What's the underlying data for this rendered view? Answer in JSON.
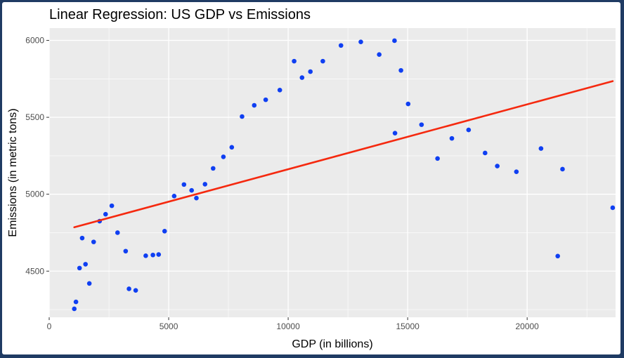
{
  "chart_data": {
    "type": "scatter",
    "title": "Linear Regression: US GDP vs Emissions",
    "xlabel": "GDP (in billions)",
    "ylabel": "Emissions (in metric tons)",
    "xlim": [
      0,
      23700
    ],
    "ylim": [
      4200,
      6080
    ],
    "xticks": [
      0,
      5000,
      10000,
      15000,
      20000
    ],
    "yticks": [
      4500,
      5000,
      5500,
      6000
    ],
    "grid": true,
    "legend": "none",
    "colors": {
      "panel": "#ebebeb",
      "grid": "#ffffff",
      "points": "#0f3ff2",
      "fit_line": "#f5290f",
      "text": "#000000",
      "tick_text": "#4d4d4d"
    },
    "points": [
      [
        1050,
        4255
      ],
      [
        1120,
        4300
      ],
      [
        1270,
        4520
      ],
      [
        1380,
        4715
      ],
      [
        1520,
        4545
      ],
      [
        1680,
        4420
      ],
      [
        1860,
        4690
      ],
      [
        2110,
        4825
      ],
      [
        2360,
        4870
      ],
      [
        2620,
        4925
      ],
      [
        2860,
        4750
      ],
      [
        3200,
        4630
      ],
      [
        3340,
        4385
      ],
      [
        3620,
        4375
      ],
      [
        4040,
        4600
      ],
      [
        4340,
        4605
      ],
      [
        4580,
        4608
      ],
      [
        4830,
        4760
      ],
      [
        5230,
        4988
      ],
      [
        5640,
        5063
      ],
      [
        5960,
        5025
      ],
      [
        6160,
        4975
      ],
      [
        6520,
        5065
      ],
      [
        6860,
        5168
      ],
      [
        7290,
        5243
      ],
      [
        7640,
        5305
      ],
      [
        8070,
        5505
      ],
      [
        8580,
        5578
      ],
      [
        9060,
        5614
      ],
      [
        9650,
        5677
      ],
      [
        10250,
        5865
      ],
      [
        10580,
        5758
      ],
      [
        10930,
        5797
      ],
      [
        11450,
        5865
      ],
      [
        12210,
        5967
      ],
      [
        13040,
        5990
      ],
      [
        13810,
        5908
      ],
      [
        14450,
        5998
      ],
      [
        14470,
        5397
      ],
      [
        14720,
        5805
      ],
      [
        15020,
        5587
      ],
      [
        15580,
        5452
      ],
      [
        16250,
        5232
      ],
      [
        16850,
        5363
      ],
      [
        17550,
        5418
      ],
      [
        18240,
        5268
      ],
      [
        18750,
        5183
      ],
      [
        19550,
        5146
      ],
      [
        20580,
        5297
      ],
      [
        21280,
        4598
      ],
      [
        21480,
        5163
      ],
      [
        23580,
        4912
      ]
    ],
    "fit_line": {
      "x": [
        1050,
        23580
      ],
      "y": [
        4785,
        5735
      ]
    }
  }
}
